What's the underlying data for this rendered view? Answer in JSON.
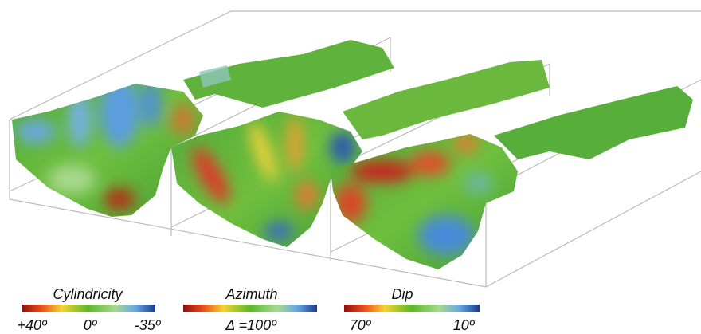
{
  "colorbars": [
    {
      "title": "Cylindricity",
      "labels": [
        "+40º",
        "0º",
        "-35º"
      ]
    },
    {
      "title": "Azimuth",
      "labels": [
        "Δ =100º"
      ]
    },
    {
      "title": "Dip",
      "labels": [
        "70º",
        "10º"
      ]
    }
  ]
}
